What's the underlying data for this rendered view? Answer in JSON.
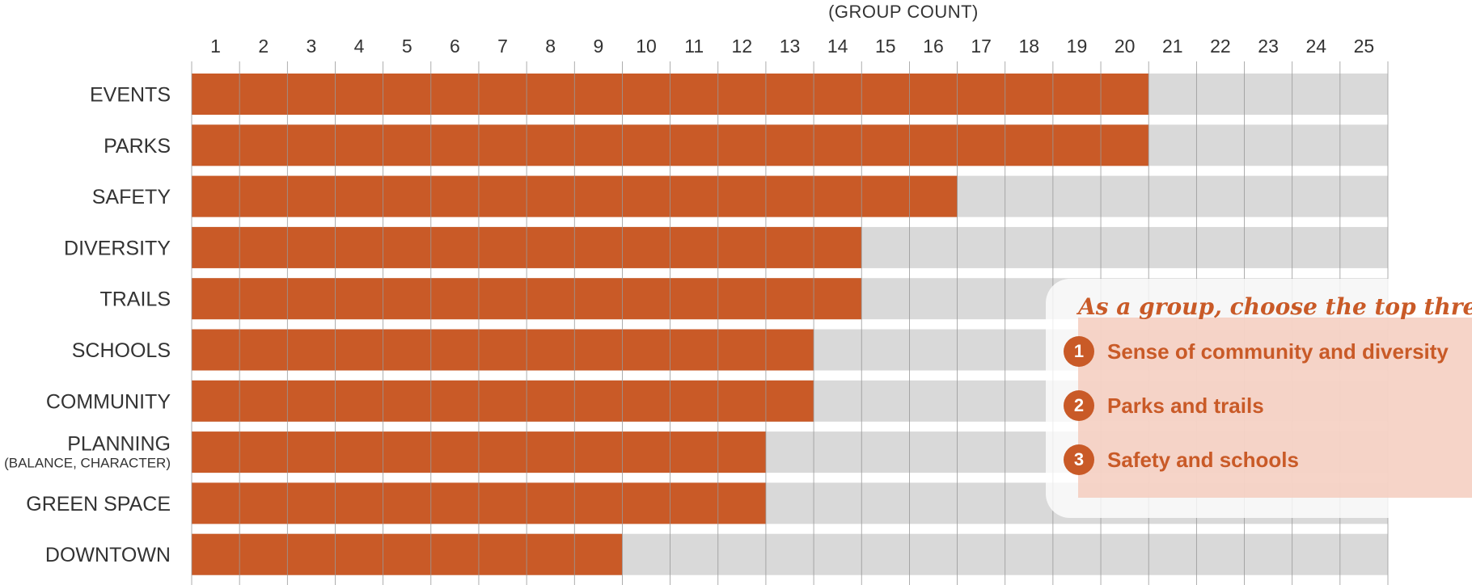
{
  "chart_data": {
    "type": "bar",
    "orientation": "horizontal",
    "axis_title": "(GROUP COUNT)",
    "x_ticks": [
      "1",
      "2",
      "3",
      "4",
      "5",
      "6",
      "7",
      "8",
      "9",
      "10",
      "11",
      "12",
      "13",
      "14",
      "15",
      "16",
      "17",
      "18",
      "19",
      "20",
      "21",
      "22",
      "23",
      "24",
      "25"
    ],
    "xlim": [
      0,
      25
    ],
    "categories": [
      {
        "label": "EVENTS",
        "sublabel": ""
      },
      {
        "label": "PARKS",
        "sublabel": ""
      },
      {
        "label": "SAFETY",
        "sublabel": ""
      },
      {
        "label": "DIVERSITY",
        "sublabel": ""
      },
      {
        "label": "TRAILS",
        "sublabel": ""
      },
      {
        "label": "SCHOOLS",
        "sublabel": ""
      },
      {
        "label": "COMMUNITY",
        "sublabel": ""
      },
      {
        "label": "PLANNING",
        "sublabel": "(BALANCE, CHARACTER)"
      },
      {
        "label": "GREEN SPACE",
        "sublabel": ""
      },
      {
        "label": "DOWNTOWN",
        "sublabel": ""
      }
    ],
    "values": [
      20,
      20,
      16,
      14,
      14,
      13,
      13,
      12,
      12,
      9
    ],
    "colors": {
      "bar": "#c95a27",
      "track": "#d9d9d9",
      "grid": "#999999"
    },
    "grid": true
  },
  "callout": {
    "title": "As a group, choose the top three",
    "items": [
      {
        "num": "1",
        "text": "Sense of community and diversity"
      },
      {
        "num": "2",
        "text": "Parks and trails"
      },
      {
        "num": "3",
        "text": "Safety and schools"
      }
    ]
  }
}
